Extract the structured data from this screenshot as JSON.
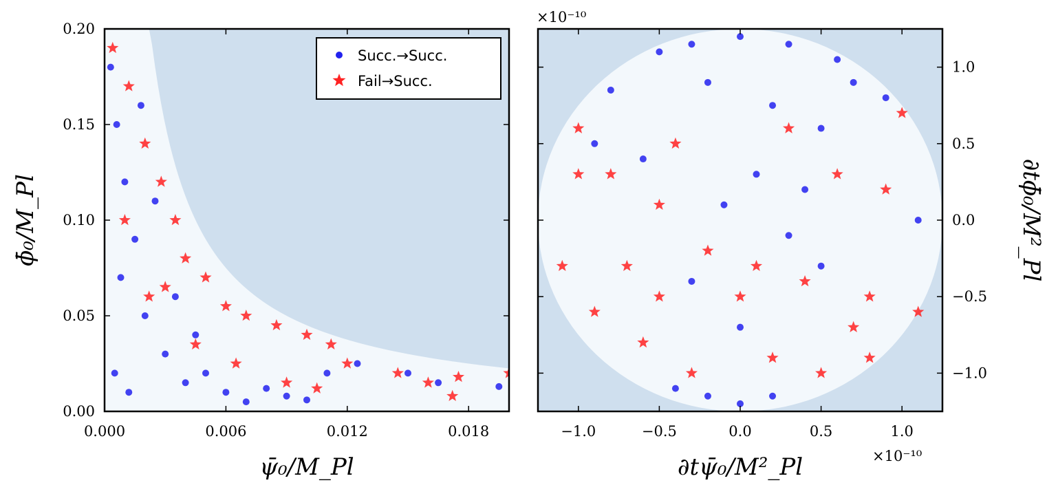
{
  "colors": {
    "region_fill": "#cfdfee",
    "success_fill": "#f3f8fc",
    "succ_marker": "#2222ee",
    "fail_marker": "#ff2222"
  },
  "legend": {
    "succ_label": "Succ.→Succ.",
    "fail_label": "Fail→Succ."
  },
  "chart_data": [
    {
      "type": "scatter",
      "xlabel": "ψ̄₀/M_Pl",
      "ylabel": "ϕ̄₀/M_Pl",
      "xlim": [
        0.0,
        0.02
      ],
      "ylim": [
        0.0,
        0.2
      ],
      "xticks": [
        "0.000",
        "0.006",
        "0.012",
        "0.018"
      ],
      "xtick_values": [
        0.0,
        0.006,
        0.012,
        0.018
      ],
      "yticks": [
        "0.00",
        "0.05",
        "0.10",
        "0.15",
        "0.20"
      ],
      "ytick_values": [
        0.0,
        0.05,
        0.1,
        0.15,
        0.2
      ],
      "boundary": "success region below curve (psi*phi ~ 4.5e-4)",
      "series": [
        {
          "name": "Succ.→Succ.",
          "marker": "circle",
          "points": [
            [
              0.0003,
              0.18
            ],
            [
              0.0006,
              0.15
            ],
            [
              0.001,
              0.12
            ],
            [
              0.0015,
              0.09
            ],
            [
              0.0008,
              0.07
            ],
            [
              0.002,
              0.05
            ],
            [
              0.003,
              0.03
            ],
            [
              0.0005,
              0.02
            ],
            [
              0.0012,
              0.01
            ],
            [
              0.004,
              0.015
            ],
            [
              0.005,
              0.02
            ],
            [
              0.006,
              0.01
            ],
            [
              0.007,
              0.005
            ],
            [
              0.008,
              0.012
            ],
            [
              0.009,
              0.008
            ],
            [
              0.01,
              0.006
            ],
            [
              0.011,
              0.02
            ],
            [
              0.0125,
              0.025
            ],
            [
              0.015,
              0.02
            ],
            [
              0.0165,
              0.015
            ],
            [
              0.0195,
              0.013
            ],
            [
              0.0025,
              0.11
            ],
            [
              0.0018,
              0.16
            ],
            [
              0.0035,
              0.06
            ],
            [
              0.0045,
              0.04
            ]
          ]
        },
        {
          "name": "Fail→Succ.",
          "marker": "star",
          "points": [
            [
              0.0004,
              0.19
            ],
            [
              0.0012,
              0.17
            ],
            [
              0.002,
              0.14
            ],
            [
              0.0028,
              0.12
            ],
            [
              0.0035,
              0.1
            ],
            [
              0.004,
              0.08
            ],
            [
              0.005,
              0.07
            ],
            [
              0.006,
              0.055
            ],
            [
              0.007,
              0.05
            ],
            [
              0.0085,
              0.045
            ],
            [
              0.01,
              0.04
            ],
            [
              0.0112,
              0.035
            ],
            [
              0.012,
              0.025
            ],
            [
              0.0145,
              0.02
            ],
            [
              0.016,
              0.015
            ],
            [
              0.0175,
              0.018
            ],
            [
              0.0172,
              0.008
            ],
            [
              0.02,
              0.02
            ],
            [
              0.003,
              0.065
            ],
            [
              0.001,
              0.1
            ],
            [
              0.0022,
              0.06
            ],
            [
              0.0045,
              0.035
            ],
            [
              0.0065,
              0.025
            ],
            [
              0.009,
              0.015
            ],
            [
              0.0105,
              0.012
            ]
          ]
        }
      ]
    },
    {
      "type": "scatter",
      "xlabel": "∂tψ̄₀/M²_Pl",
      "ylabel": "∂tϕ̄₀/M²_Pl",
      "x_scale_label": "×10⁻¹⁰",
      "y_scale_label": "×10⁻¹⁰",
      "xlim": [
        -1.25,
        1.25
      ],
      "ylim": [
        -1.25,
        1.25
      ],
      "xticks": [
        "−1.0",
        "−0.5",
        "0.0",
        "0.5",
        "1.0"
      ],
      "xtick_values": [
        -1.0,
        -0.5,
        0.0,
        0.5,
        1.0
      ],
      "yticks": [
        "1.0",
        "0.5",
        "0.0",
        "−0.5",
        "−1.0"
      ],
      "ytick_values": [
        1.0,
        0.5,
        0.0,
        -0.5,
        -1.0
      ],
      "boundary": "success region inside circle of radius 1.25",
      "series": [
        {
          "name": "Succ.→Succ.",
          "marker": "circle",
          "points": [
            [
              -0.5,
              1.1
            ],
            [
              -0.3,
              1.15
            ],
            [
              0.0,
              1.2
            ],
            [
              0.3,
              1.15
            ],
            [
              0.6,
              1.05
            ],
            [
              0.9,
              0.8
            ],
            [
              -0.8,
              0.85
            ],
            [
              -0.2,
              0.9
            ],
            [
              0.2,
              0.75
            ],
            [
              0.5,
              0.6
            ],
            [
              -0.6,
              0.4
            ],
            [
              0.1,
              0.3
            ],
            [
              -0.1,
              0.1
            ],
            [
              0.3,
              -0.1
            ],
            [
              0.0,
              -0.7
            ],
            [
              -0.4,
              -1.1
            ],
            [
              0.0,
              -1.2
            ],
            [
              0.2,
              -1.15
            ],
            [
              -0.2,
              -1.15
            ],
            [
              1.1,
              0.0
            ],
            [
              0.7,
              0.9
            ],
            [
              -0.9,
              0.5
            ],
            [
              0.4,
              0.2
            ],
            [
              -0.3,
              -0.4
            ],
            [
              0.5,
              -0.3
            ]
          ]
        },
        {
          "name": "Fail→Succ.",
          "marker": "star",
          "points": [
            [
              -1.0,
              0.6
            ],
            [
              -0.8,
              0.3
            ],
            [
              -0.5,
              0.1
            ],
            [
              -0.2,
              -0.2
            ],
            [
              0.1,
              -0.3
            ],
            [
              0.4,
              -0.4
            ],
            [
              0.8,
              -0.5
            ],
            [
              1.1,
              -0.6
            ],
            [
              -0.9,
              -0.6
            ],
            [
              -0.6,
              -0.8
            ],
            [
              -0.3,
              -1.0
            ],
            [
              0.2,
              -0.9
            ],
            [
              0.5,
              -1.0
            ],
            [
              0.8,
              -0.9
            ],
            [
              -1.1,
              -0.3
            ],
            [
              0.9,
              0.2
            ],
            [
              0.6,
              0.3
            ],
            [
              -0.4,
              0.5
            ],
            [
              0.3,
              0.6
            ],
            [
              -0.7,
              -0.3
            ],
            [
              0.0,
              -0.5
            ],
            [
              0.7,
              -0.7
            ],
            [
              -0.5,
              -0.5
            ],
            [
              1.0,
              0.7
            ],
            [
              -1.0,
              0.3
            ]
          ]
        }
      ]
    }
  ]
}
